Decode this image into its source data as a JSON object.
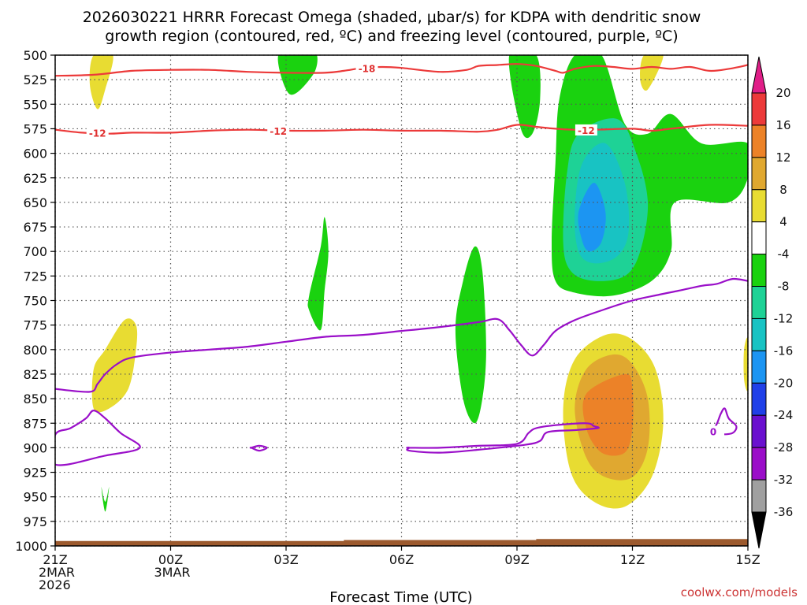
{
  "chart_data": {
    "type": "contour-timeheight",
    "title_line1": "2026030221 HRRR Forecast Omega (shaded, μbar/s) for KDPA with dendritic snow",
    "title_line2": "growth region (contoured, red, ºC) and freezing level (contoured, purple, ºC)",
    "xlabel": "Forecast Time (UTC)",
    "credit": "coolwx.com/models",
    "y_axis": {
      "unit": "hPa",
      "range": [
        500,
        1000
      ],
      "ticks": [
        "500",
        "525",
        "550",
        "575",
        "600",
        "625",
        "650",
        "675",
        "700",
        "725",
        "750",
        "775",
        "800",
        "825",
        "850",
        "875",
        "900",
        "925",
        "950",
        "975",
        "1000"
      ]
    },
    "x_axis": {
      "range_hours": [
        0,
        18
      ],
      "ticks": [
        {
          "hour": 0,
          "lines": [
            "21Z",
            "2MAR",
            "2026"
          ]
        },
        {
          "hour": 3,
          "lines": [
            "00Z",
            "3MAR"
          ]
        },
        {
          "hour": 6,
          "lines": [
            "03Z"
          ]
        },
        {
          "hour": 9,
          "lines": [
            "06Z"
          ]
        },
        {
          "hour": 12,
          "lines": [
            "09Z"
          ]
        },
        {
          "hour": 15,
          "lines": [
            "12Z"
          ]
        },
        {
          "hour": 18,
          "lines": [
            "15Z"
          ]
        }
      ]
    },
    "colorbar": {
      "labels": [
        "20",
        "16",
        "12",
        "8",
        "4",
        "-4",
        "-8",
        "-12",
        "-16",
        "-20",
        "-24",
        "-28",
        "-32",
        "-36"
      ],
      "bins": [
        {
          "color": "#000000"
        },
        {
          "color": "#a0a0a0"
        },
        {
          "color": "#9b0ec9"
        },
        {
          "color": "#6a10cf"
        },
        {
          "color": "#2040e8"
        },
        {
          "color": "#1c95f2"
        },
        {
          "color": "#18c3c3"
        },
        {
          "color": "#1ed296"
        },
        {
          "color": "#1ad20f"
        },
        {
          "color": "#ffffff"
        },
        {
          "color": "#e8dc32"
        },
        {
          "color": "#e0a830"
        },
        {
          "color": "#ec8228"
        },
        {
          "color": "#ec3a3a"
        },
        {
          "color": "#e01e88"
        }
      ]
    },
    "omega_regions": [
      {
        "level": "up_-4",
        "color": "#1ad20f",
        "points": [
          [
            6.5,
            500
          ],
          [
            6.8,
            500
          ],
          [
            6.7,
            520
          ],
          [
            6.1,
            540
          ],
          [
            5.8,
            500
          ]
        ]
      },
      {
        "level": "up_-4",
        "color": "#1ad20f",
        "points": [
          [
            11.8,
            500
          ],
          [
            12.5,
            500
          ],
          [
            12.6,
            545
          ],
          [
            12.4,
            580
          ],
          [
            12.1,
            575
          ]
        ]
      },
      {
        "level": "up_-4",
        "color": "#1ad20f",
        "points": [
          [
            13.5,
            500
          ],
          [
            14.2,
            500
          ],
          [
            14.8,
            570
          ],
          [
            15.4,
            580
          ],
          [
            16.0,
            560
          ],
          [
            16.8,
            590
          ],
          [
            18.0,
            590
          ],
          [
            18.0,
            625
          ],
          [
            17.5,
            650
          ],
          [
            16.1,
            650
          ],
          [
            16.0,
            700
          ],
          [
            15.5,
            730
          ],
          [
            14.5,
            745
          ],
          [
            13.5,
            742
          ],
          [
            13.0,
            730
          ],
          [
            12.9,
            690
          ],
          [
            13.0,
            610
          ],
          [
            13.1,
            545
          ]
        ]
      },
      {
        "level": "up_-8",
        "color": "#1ed296",
        "points": [
          [
            14.6,
            565
          ],
          [
            15.1,
            600
          ],
          [
            15.4,
            650
          ],
          [
            15.2,
            700
          ],
          [
            14.8,
            725
          ],
          [
            14.0,
            730
          ],
          [
            13.4,
            720
          ],
          [
            13.2,
            690
          ],
          [
            13.3,
            620
          ],
          [
            13.6,
            580
          ]
        ]
      },
      {
        "level": "up_-12",
        "color": "#18c3c3",
        "points": [
          [
            14.3,
            590
          ],
          [
            14.8,
            630
          ],
          [
            14.9,
            680
          ],
          [
            14.6,
            705
          ],
          [
            14.0,
            712
          ],
          [
            13.6,
            700
          ],
          [
            13.5,
            660
          ],
          [
            13.7,
            610
          ]
        ]
      },
      {
        "level": "up_-16",
        "color": "#1c95f2",
        "points": [
          [
            14.0,
            630
          ],
          [
            14.3,
            660
          ],
          [
            14.2,
            690
          ],
          [
            13.9,
            700
          ],
          [
            13.7,
            690
          ],
          [
            13.6,
            660
          ]
        ]
      },
      {
        "level": "up_-4",
        "color": "#1ad20f",
        "points": [
          [
            7.0,
            665
          ],
          [
            7.1,
            700
          ],
          [
            7.0,
            740
          ],
          [
            6.9,
            780
          ],
          [
            6.6,
            760
          ],
          [
            6.6,
            745
          ],
          [
            6.9,
            695
          ]
        ]
      },
      {
        "level": "up_-4",
        "color": "#1ad20f",
        "points": [
          [
            10.9,
            695
          ],
          [
            11.1,
            720
          ],
          [
            11.2,
            800
          ],
          [
            11.1,
            850
          ],
          [
            10.9,
            875
          ],
          [
            10.6,
            850
          ],
          [
            10.4,
            780
          ],
          [
            10.6,
            730
          ]
        ]
      },
      {
        "level": "up_-4",
        "color": "#1ad20f",
        "points": [
          [
            1.3,
            955
          ],
          [
            1.4,
            940
          ],
          [
            1.3,
            965
          ],
          [
            1.2,
            940
          ]
        ]
      },
      {
        "level": "down_4",
        "color": "#e8dc32",
        "points": [
          [
            1.0,
            500
          ],
          [
            1.5,
            500
          ],
          [
            1.3,
            535
          ],
          [
            1.1,
            555
          ],
          [
            0.9,
            530
          ]
        ]
      },
      {
        "level": "down_4",
        "color": "#e8dc32",
        "points": [
          [
            15.3,
            500
          ],
          [
            15.8,
            500
          ],
          [
            15.4,
            535
          ],
          [
            15.2,
            525
          ]
        ]
      },
      {
        "level": "down_4",
        "color": "#e8dc32",
        "points": [
          [
            1.8,
            770
          ],
          [
            2.1,
            775
          ],
          [
            2.1,
            800
          ],
          [
            1.9,
            840
          ],
          [
            1.4,
            860
          ],
          [
            1.0,
            860
          ],
          [
            1.0,
            820
          ],
          [
            1.3,
            800
          ]
        ]
      },
      {
        "level": "down_4",
        "color": "#e8dc32",
        "points": [
          [
            17.9,
            800
          ],
          [
            18.0,
            790
          ],
          [
            18.0,
            840
          ],
          [
            17.9,
            830
          ]
        ]
      },
      {
        "level": "down_4",
        "color": "#e8dc32",
        "points": [
          [
            14.3,
            785
          ],
          [
            15.0,
            790
          ],
          [
            15.6,
            820
          ],
          [
            15.8,
            875
          ],
          [
            15.5,
            930
          ],
          [
            14.8,
            960
          ],
          [
            14.0,
            955
          ],
          [
            13.4,
            925
          ],
          [
            13.2,
            860
          ],
          [
            13.5,
            810
          ]
        ]
      },
      {
        "level": "down_8",
        "color": "#e0a830",
        "points": [
          [
            14.5,
            805
          ],
          [
            15.0,
            815
          ],
          [
            15.4,
            850
          ],
          [
            15.4,
            900
          ],
          [
            15.0,
            930
          ],
          [
            14.3,
            930
          ],
          [
            13.8,
            910
          ],
          [
            13.5,
            860
          ],
          [
            13.8,
            820
          ]
        ]
      },
      {
        "level": "down_12",
        "color": "#ec8228",
        "points": [
          [
            14.8,
            825
          ],
          [
            15.0,
            840
          ],
          [
            15.0,
            880
          ],
          [
            14.8,
            905
          ],
          [
            14.2,
            905
          ],
          [
            13.8,
            880
          ],
          [
            13.8,
            845
          ]
        ]
      }
    ],
    "contours": [
      {
        "name": "dgz-top",
        "value": -18,
        "color": "#ec3a3a",
        "label": "-18",
        "label_at": [
          8.1,
          514
        ],
        "points": [
          [
            0,
            521
          ],
          [
            1,
            520
          ],
          [
            2,
            516
          ],
          [
            3,
            515
          ],
          [
            4,
            515
          ],
          [
            5,
            517
          ],
          [
            6,
            518
          ],
          [
            7,
            518
          ],
          [
            7.5,
            516
          ],
          [
            8,
            513
          ],
          [
            8.5,
            512
          ],
          [
            9,
            513
          ],
          [
            10,
            517
          ],
          [
            10.7,
            515
          ],
          [
            11,
            511
          ],
          [
            11.5,
            510
          ],
          [
            12,
            509
          ],
          [
            12.5,
            511
          ],
          [
            13,
            516
          ],
          [
            13.2,
            518
          ],
          [
            13.5,
            514
          ],
          [
            14,
            511
          ],
          [
            14.5,
            512
          ],
          [
            15,
            514
          ],
          [
            15.5,
            512
          ],
          [
            16,
            514
          ],
          [
            16.5,
            512
          ],
          [
            17,
            516
          ],
          [
            17.5,
            514
          ],
          [
            18,
            510
          ]
        ]
      },
      {
        "name": "dgz-bottom",
        "value": -12,
        "color": "#ec3a3a",
        "label": "-12",
        "label_at": [
          1.1,
          580
        ],
        "points": [
          [
            0,
            576
          ],
          [
            0.7,
            579
          ],
          [
            1.4,
            580
          ],
          [
            2,
            579
          ],
          [
            3,
            579
          ],
          [
            4,
            577
          ],
          [
            5,
            576
          ],
          [
            6,
            577
          ],
          [
            7,
            577
          ],
          [
            8,
            576
          ],
          [
            9,
            577
          ],
          [
            10,
            577
          ],
          [
            11,
            578
          ],
          [
            11.5,
            576
          ],
          [
            12,
            571
          ],
          [
            12.5,
            573
          ],
          [
            13,
            575
          ],
          [
            13.5,
            576
          ],
          [
            14,
            576
          ],
          [
            15,
            575
          ],
          [
            15.5,
            577
          ],
          [
            16,
            575
          ],
          [
            17,
            571
          ],
          [
            18,
            572
          ]
        ]
      },
      {
        "name": "freezing-level",
        "value": 0,
        "color": "#9a0fc9",
        "points": [
          [
            0,
            840
          ],
          [
            0.9,
            843
          ],
          [
            1.1,
            835
          ],
          [
            1.3,
            825
          ],
          [
            1.6,
            815
          ],
          [
            2,
            808
          ],
          [
            3,
            803
          ],
          [
            4,
            800
          ],
          [
            5,
            797
          ],
          [
            6,
            792
          ],
          [
            7,
            787
          ],
          [
            8,
            785
          ],
          [
            9,
            781
          ],
          [
            10,
            777
          ],
          [
            11,
            772
          ],
          [
            11.5,
            769
          ],
          [
            11.8,
            780
          ],
          [
            12.1,
            795
          ],
          [
            12.4,
            806
          ],
          [
            12.7,
            795
          ],
          [
            13,
            781
          ],
          [
            13.5,
            770
          ],
          [
            14.2,
            760
          ],
          [
            15,
            750
          ],
          [
            15.7,
            744
          ],
          [
            16.2,
            740
          ],
          [
            16.8,
            735
          ],
          [
            17.2,
            733
          ],
          [
            17.6,
            728
          ],
          [
            18,
            730
          ]
        ]
      },
      {
        "name": "freezing-loop-left",
        "value": 0,
        "color": "#9a0fc9",
        "points": [
          [
            0,
            887
          ],
          [
            0.4,
            880
          ],
          [
            0.8,
            870
          ],
          [
            1.0,
            862
          ],
          [
            1.3,
            870
          ],
          [
            1.7,
            885
          ],
          [
            2.2,
            900
          ],
          [
            1.3,
            908
          ],
          [
            0,
            917
          ]
        ]
      },
      {
        "name": "freezing-loop-small",
        "value": 0,
        "color": "#9a0fc9",
        "points": [
          [
            5.1,
            900
          ],
          [
            5.3,
            898
          ],
          [
            5.5,
            900
          ],
          [
            5.3,
            903
          ],
          [
            5.1,
            900
          ]
        ]
      },
      {
        "name": "freezing-loop-right",
        "value": 0,
        "color": "#9a0fc9",
        "points": [
          [
            9.2,
            900
          ],
          [
            10,
            900
          ],
          [
            11,
            898
          ],
          [
            12,
            896
          ],
          [
            12.3,
            885
          ],
          [
            12.5,
            880
          ],
          [
            13,
            877
          ],
          [
            13.8,
            875
          ],
          [
            14.0,
            878
          ],
          [
            14.1,
            880
          ],
          [
            13.5,
            882
          ],
          [
            12.8,
            884
          ],
          [
            12.6,
            893
          ],
          [
            12.2,
            897
          ],
          [
            11,
            902
          ],
          [
            10,
            905
          ],
          [
            9.2,
            903
          ],
          [
            9.2,
            900
          ]
        ]
      },
      {
        "name": "freezing-loop-far-right",
        "value": 0,
        "color": "#9a0fc9",
        "label": "0",
        "label_at": [
          17.1,
          884
        ],
        "points": [
          [
            17.1,
            882
          ],
          [
            17.2,
            875
          ],
          [
            17.3,
            865
          ],
          [
            17.4,
            860
          ],
          [
            17.5,
            870
          ],
          [
            17.7,
            878
          ],
          [
            17.6,
            885
          ],
          [
            17.3,
            886
          ],
          [
            17.1,
            882
          ]
        ]
      }
    ],
    "terrain_top_hpa": [
      {
        "hour": 0,
        "p": 995
      },
      {
        "hour": 7.5,
        "p": 995
      },
      {
        "hour": 7.5,
        "p": 994
      },
      {
        "hour": 12.5,
        "p": 994
      },
      {
        "hour": 12.5,
        "p": 993
      },
      {
        "hour": 18,
        "p": 993
      }
    ]
  }
}
